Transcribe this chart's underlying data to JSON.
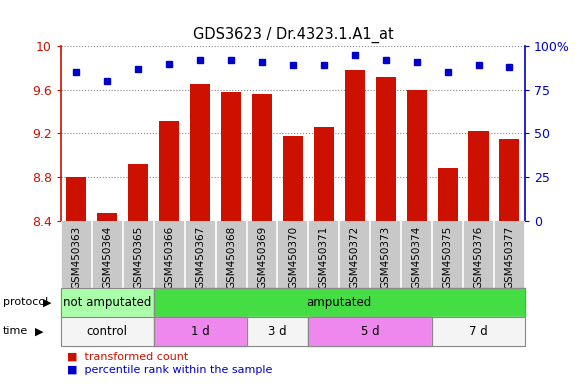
{
  "title": "GDS3623 / Dr.4323.1.A1_at",
  "samples": [
    "GSM450363",
    "GSM450364",
    "GSM450365",
    "GSM450366",
    "GSM450367",
    "GSM450368",
    "GSM450369",
    "GSM450370",
    "GSM450371",
    "GSM450372",
    "GSM450373",
    "GSM450374",
    "GSM450375",
    "GSM450376",
    "GSM450377"
  ],
  "bar_values": [
    8.8,
    8.47,
    8.92,
    9.31,
    9.65,
    9.58,
    9.56,
    9.18,
    9.26,
    9.78,
    9.72,
    9.6,
    8.88,
    9.22,
    9.15
  ],
  "percentile_values": [
    85,
    80,
    87,
    90,
    92,
    92,
    91,
    89,
    89,
    95,
    92,
    91,
    85,
    89,
    88
  ],
  "left_ylim": [
    8.4,
    10.0
  ],
  "right_ylim": [
    0,
    100
  ],
  "left_yticks": [
    8.4,
    8.8,
    9.2,
    9.6,
    10.0
  ],
  "right_yticks": [
    0,
    25,
    50,
    75,
    100
  ],
  "right_yticklabels": [
    "0",
    "25",
    "50",
    "75",
    "100%"
  ],
  "bar_color": "#cc1100",
  "dot_color": "#0000cc",
  "protocol_groups": [
    {
      "label": "not amputated",
      "start": 0,
      "end": 3,
      "color": "#aaffaa"
    },
    {
      "label": "amputated",
      "start": 3,
      "end": 15,
      "color": "#44dd44"
    }
  ],
  "time_groups": [
    {
      "label": "control",
      "start": 0,
      "end": 3,
      "color": "#f4f4f4"
    },
    {
      "label": "1 d",
      "start": 3,
      "end": 6,
      "color": "#ee88ee"
    },
    {
      "label": "3 d",
      "start": 6,
      "end": 8,
      "color": "#f4f4f4"
    },
    {
      "label": "5 d",
      "start": 8,
      "end": 12,
      "color": "#ee88ee"
    },
    {
      "label": "7 d",
      "start": 12,
      "end": 15,
      "color": "#f4f4f4"
    }
  ]
}
